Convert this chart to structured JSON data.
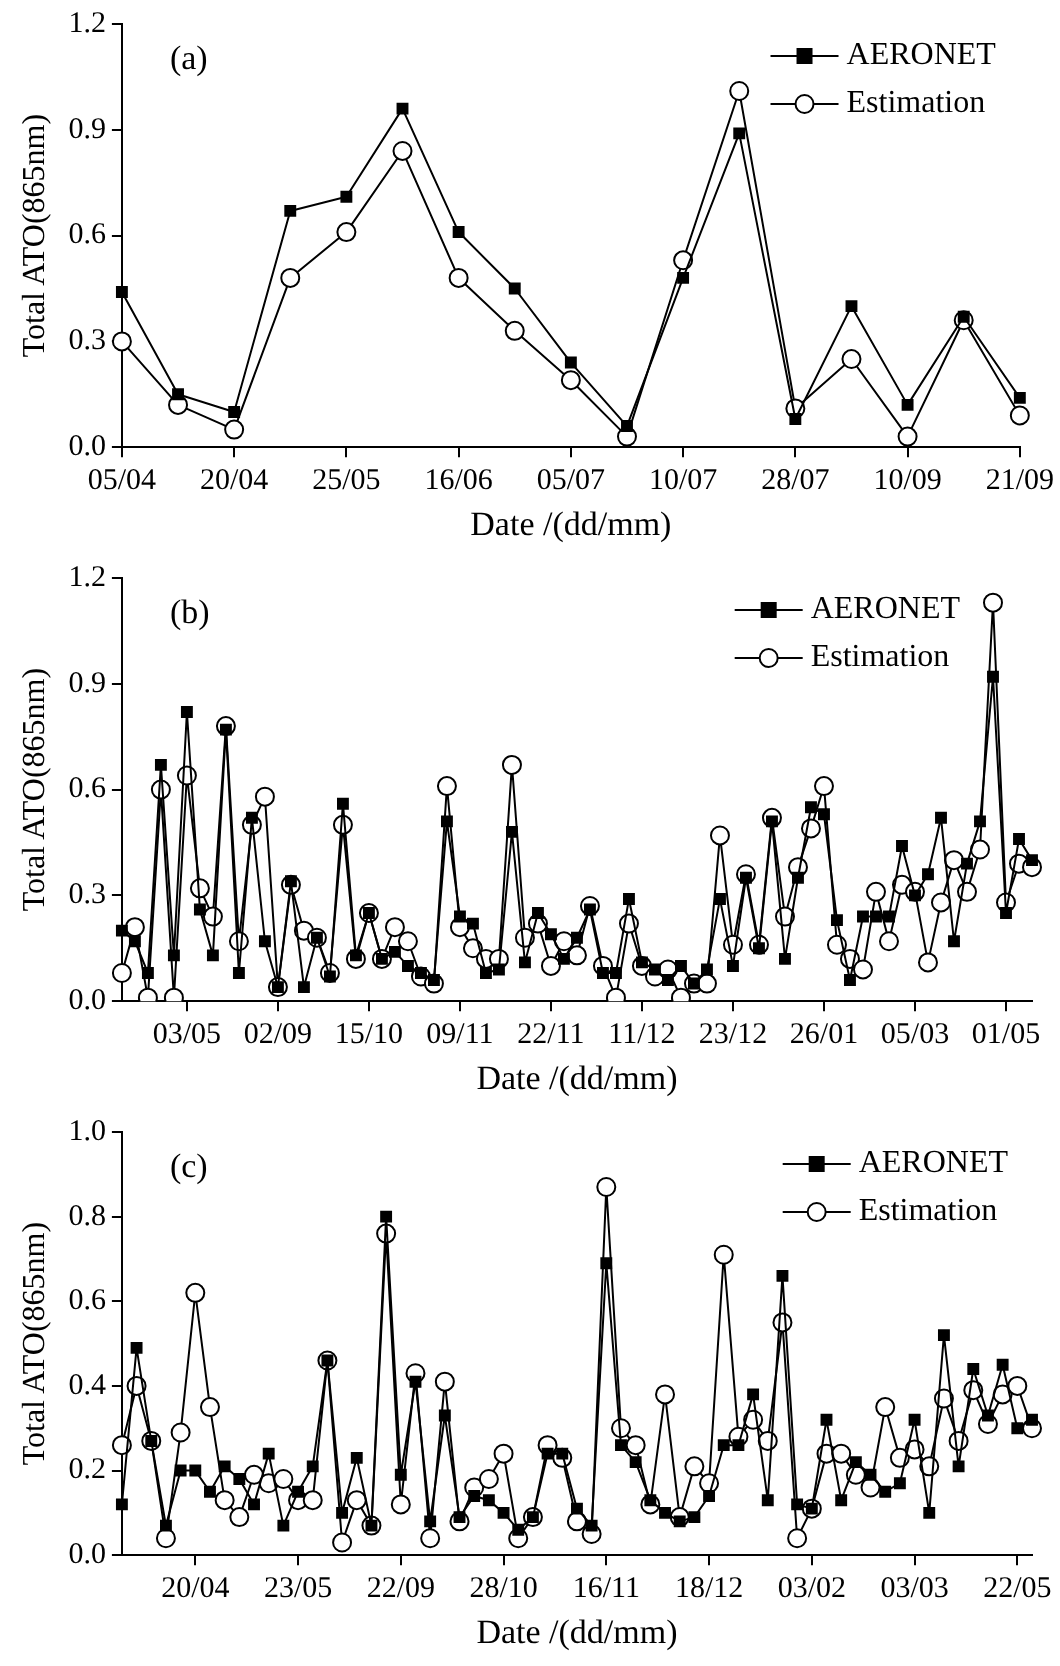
{
  "chart_data": [
    {
      "type": "line",
      "title": "(a)",
      "xlabel": "Date /(dd/mm)",
      "ylabel": "Total ATO(865nm)",
      "legend": "top right",
      "grid": false,
      "categories": [
        "05/04",
        null,
        "20/04",
        null,
        "25/05",
        null,
        "16/06",
        null,
        "05/07",
        null,
        "10/07",
        null,
        "28/07",
        null,
        "10/09",
        null,
        "21/09"
      ],
      "ylim": [
        0,
        1.2
      ],
      "yticks": [
        {
          "value": 0,
          "label": "0.0"
        },
        {
          "value": 0.3,
          "label": "0.3"
        },
        {
          "value": 0.6,
          "label": "0.6"
        },
        {
          "value": 0.9,
          "label": "0.9"
        },
        {
          "value": 1.2,
          "label": "1.2"
        }
      ],
      "series": [
        {
          "name": "AERONET",
          "color": "#000000",
          "marker": "square",
          "values": [
            0.44,
            0.15,
            0.1,
            0.67,
            0.71,
            0.96,
            0.61,
            0.45,
            0.24,
            0.06,
            0.48,
            0.89,
            0.08,
            0.4,
            0.12,
            0.37,
            0.14
          ]
        },
        {
          "name": "Estimation",
          "color": "#000000",
          "marker": "circle",
          "values": [
            0.3,
            0.12,
            0.05,
            0.48,
            0.61,
            0.84,
            0.48,
            0.33,
            0.19,
            0.03,
            0.53,
            1.01,
            0.11,
            0.25,
            0.03,
            0.36,
            0.09
          ]
        }
      ]
    },
    {
      "type": "line",
      "title": "(b)",
      "xlabel": "Date /(dd/mm)",
      "ylabel": "Total ATO(865nm)",
      "legend": "top right",
      "grid": false,
      "categories": [
        null,
        null,
        null,
        null,
        null,
        "03/05",
        null,
        null,
        null,
        null,
        null,
        null,
        "02/09",
        null,
        null,
        null,
        null,
        null,
        null,
        "15/10",
        null,
        null,
        null,
        null,
        null,
        null,
        "09/11",
        null,
        null,
        null,
        null,
        null,
        null,
        "22/11",
        null,
        null,
        null,
        null,
        null,
        null,
        "11/12",
        null,
        null,
        null,
        null,
        null,
        null,
        "23/12",
        null,
        null,
        null,
        null,
        null,
        null,
        "26/01",
        null,
        null,
        null,
        null,
        null,
        null,
        "05/03",
        null,
        null,
        null,
        null,
        null,
        null,
        "01/05",
        null,
        null
      ],
      "ylim": [
        0,
        1.2
      ],
      "yticks": [
        {
          "value": 0,
          "label": "0.0"
        },
        {
          "value": 0.3,
          "label": "0.3"
        },
        {
          "value": 0.6,
          "label": "0.6"
        },
        {
          "value": 0.9,
          "label": "0.9"
        },
        {
          "value": 1.2,
          "label": "1.2"
        }
      ],
      "series": [
        {
          "name": "AERONET",
          "color": "#000000",
          "marker": "square",
          "values": [
            0.2,
            0.17,
            0.08,
            0.67,
            0.13,
            0.82,
            0.26,
            0.13,
            0.77,
            0.08,
            0.52,
            0.17,
            0.04,
            0.34,
            0.04,
            0.18,
            0.07,
            0.56,
            0.13,
            0.25,
            0.12,
            0.14,
            0.1,
            0.08,
            0.06,
            0.51,
            0.24,
            0.22,
            0.08,
            0.09,
            0.48,
            0.11,
            0.25,
            0.19,
            0.12,
            0.18,
            0.26,
            0.08,
            0.08,
            0.29,
            0.11,
            0.09,
            0.06,
            0.1,
            0.05,
            0.09,
            0.29,
            0.1,
            0.35,
            0.15,
            0.51,
            0.12,
            0.35,
            0.55,
            0.53,
            0.23,
            0.06,
            0.24,
            0.24,
            0.24,
            0.44,
            0.3,
            0.36,
            0.52,
            0.17,
            0.39,
            0.51,
            0.92,
            0.25,
            0.46,
            0.4
          ]
        },
        {
          "name": "Estimation",
          "color": "#000000",
          "marker": "circle",
          "values": [
            0.08,
            0.21,
            0.01,
            0.6,
            0.01,
            0.64,
            0.32,
            0.24,
            0.78,
            0.17,
            0.5,
            0.58,
            0.04,
            0.33,
            0.2,
            0.18,
            0.08,
            0.5,
            0.12,
            0.25,
            0.12,
            0.21,
            0.17,
            0.07,
            0.05,
            0.61,
            0.21,
            0.15,
            0.12,
            0.12,
            0.67,
            0.18,
            0.22,
            0.1,
            0.17,
            0.13,
            0.27,
            0.1,
            0.01,
            0.22,
            0.1,
            0.07,
            0.09,
            0.01,
            0.05,
            0.05,
            0.47,
            0.16,
            0.36,
            0.16,
            0.52,
            0.24,
            0.38,
            0.49,
            0.61,
            0.16,
            0.12,
            0.09,
            0.31,
            0.17,
            0.33,
            0.31,
            0.11,
            0.28,
            0.4,
            0.31,
            0.43,
            1.13,
            0.28,
            0.39,
            0.38
          ]
        }
      ]
    },
    {
      "type": "line",
      "title": "(c)",
      "xlabel": "Date /(dd/mm)",
      "ylabel": "Total ATO(865nm)",
      "legend": "top right",
      "grid": false,
      "categories": [
        null,
        null,
        null,
        null,
        null,
        "20/04",
        null,
        null,
        null,
        null,
        null,
        null,
        "23/05",
        null,
        null,
        null,
        null,
        null,
        null,
        "22/09",
        null,
        null,
        null,
        null,
        null,
        null,
        "28/10",
        null,
        null,
        null,
        null,
        null,
        null,
        "16/11",
        null,
        null,
        null,
        null,
        null,
        null,
        "18/12",
        null,
        null,
        null,
        null,
        null,
        null,
        "03/02",
        null,
        null,
        null,
        null,
        null,
        null,
        "03/03",
        null,
        null,
        null,
        null,
        null,
        null,
        "22/05",
        null
      ],
      "ylim": [
        0,
        1.0
      ],
      "yticks": [
        {
          "value": 0,
          "label": "0.0"
        },
        {
          "value": 0.2,
          "label": "0.2"
        },
        {
          "value": 0.4,
          "label": "0.4"
        },
        {
          "value": 0.6,
          "label": "0.6"
        },
        {
          "value": 0.8,
          "label": "0.8"
        },
        {
          "value": 1.0,
          "label": "1.0"
        }
      ],
      "series": [
        {
          "name": "AERONET",
          "color": "#000000",
          "marker": "square",
          "values": [
            0.12,
            0.49,
            0.27,
            0.07,
            0.2,
            0.2,
            0.15,
            0.21,
            0.18,
            0.12,
            0.24,
            0.07,
            0.15,
            0.21,
            0.46,
            0.1,
            0.23,
            0.07,
            0.8,
            0.19,
            0.41,
            0.08,
            0.33,
            0.09,
            0.14,
            0.13,
            0.1,
            0.06,
            0.09,
            0.24,
            0.24,
            0.11,
            0.07,
            0.69,
            0.26,
            0.22,
            0.13,
            0.1,
            0.08,
            0.09,
            0.14,
            0.26,
            0.26,
            0.38,
            0.13,
            0.66,
            0.12,
            0.11,
            0.32,
            0.13,
            0.22,
            0.19,
            0.15,
            0.17,
            0.32,
            0.1,
            0.52,
            0.21,
            0.44,
            0.33,
            0.45,
            0.3,
            0.32
          ]
        },
        {
          "name": "Estimation",
          "color": "#000000",
          "marker": "circle",
          "values": [
            0.26,
            0.4,
            0.27,
            0.04,
            0.29,
            0.62,
            0.35,
            0.13,
            0.09,
            0.19,
            0.17,
            0.18,
            0.13,
            0.13,
            0.46,
            0.03,
            0.13,
            0.07,
            0.76,
            0.12,
            0.43,
            0.04,
            0.41,
            0.08,
            0.16,
            0.18,
            0.24,
            0.04,
            0.09,
            0.26,
            0.23,
            0.08,
            0.05,
            0.87,
            0.3,
            0.26,
            0.12,
            0.38,
            0.09,
            0.21,
            0.17,
            0.71,
            0.28,
            0.32,
            0.27,
            0.55,
            0.04,
            0.11,
            0.24,
            0.24,
            0.19,
            0.16,
            0.35,
            0.23,
            0.25,
            0.21,
            0.37,
            0.27,
            0.39,
            0.31,
            0.38,
            0.4,
            0.3
          ]
        }
      ]
    }
  ]
}
